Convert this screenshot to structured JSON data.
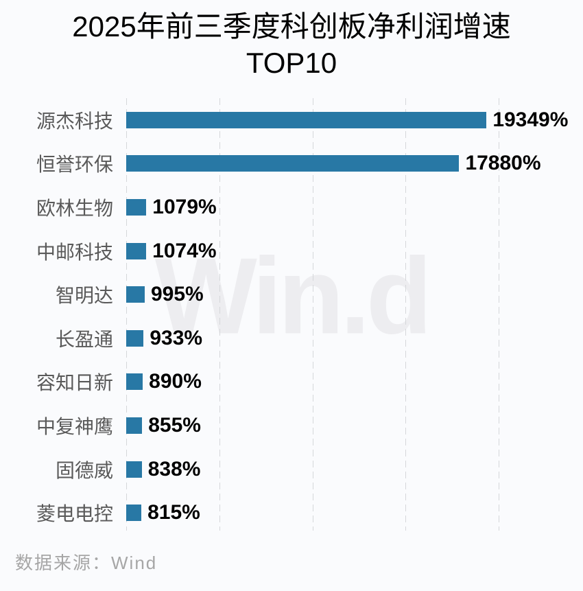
{
  "title": {
    "line1": "2025年前三季度科创板净利润增速",
    "line2": "TOP10"
  },
  "watermark": "Win.d",
  "source": "数据来源：Wind",
  "colors": {
    "bar": "#2878a5",
    "background": "#fafbfd",
    "gridline": "#d5d7da",
    "category_label": "#595959",
    "value_label": "#000000",
    "source_text": "#a6a6a6",
    "watermark": "#ededf0"
  },
  "chart_data": {
    "type": "bar",
    "orientation": "horizontal",
    "title": "2025年前三季度科创板净利润增速 TOP10",
    "xlabel": "",
    "ylabel": "",
    "xlim": [
      0,
      20000
    ],
    "grid": "dashed-vertical",
    "legend": "none",
    "gridline_values": [
      0,
      5000,
      10000,
      15000,
      20000
    ],
    "categories": [
      "源杰科技",
      "恒誉环保",
      "欧林生物",
      "中邮科技",
      "智明达",
      "长盈通",
      "容知日新",
      "中复神鹰",
      "固德威",
      "菱电电控"
    ],
    "values": [
      19349,
      17880,
      1079,
      1074,
      995,
      933,
      890,
      855,
      838,
      815
    ],
    "value_labels": [
      "19349%",
      "17880%",
      "1079%",
      "1074%",
      "995%",
      "933%",
      "890%",
      "855%",
      "838%",
      "815%"
    ],
    "unit": "%"
  }
}
